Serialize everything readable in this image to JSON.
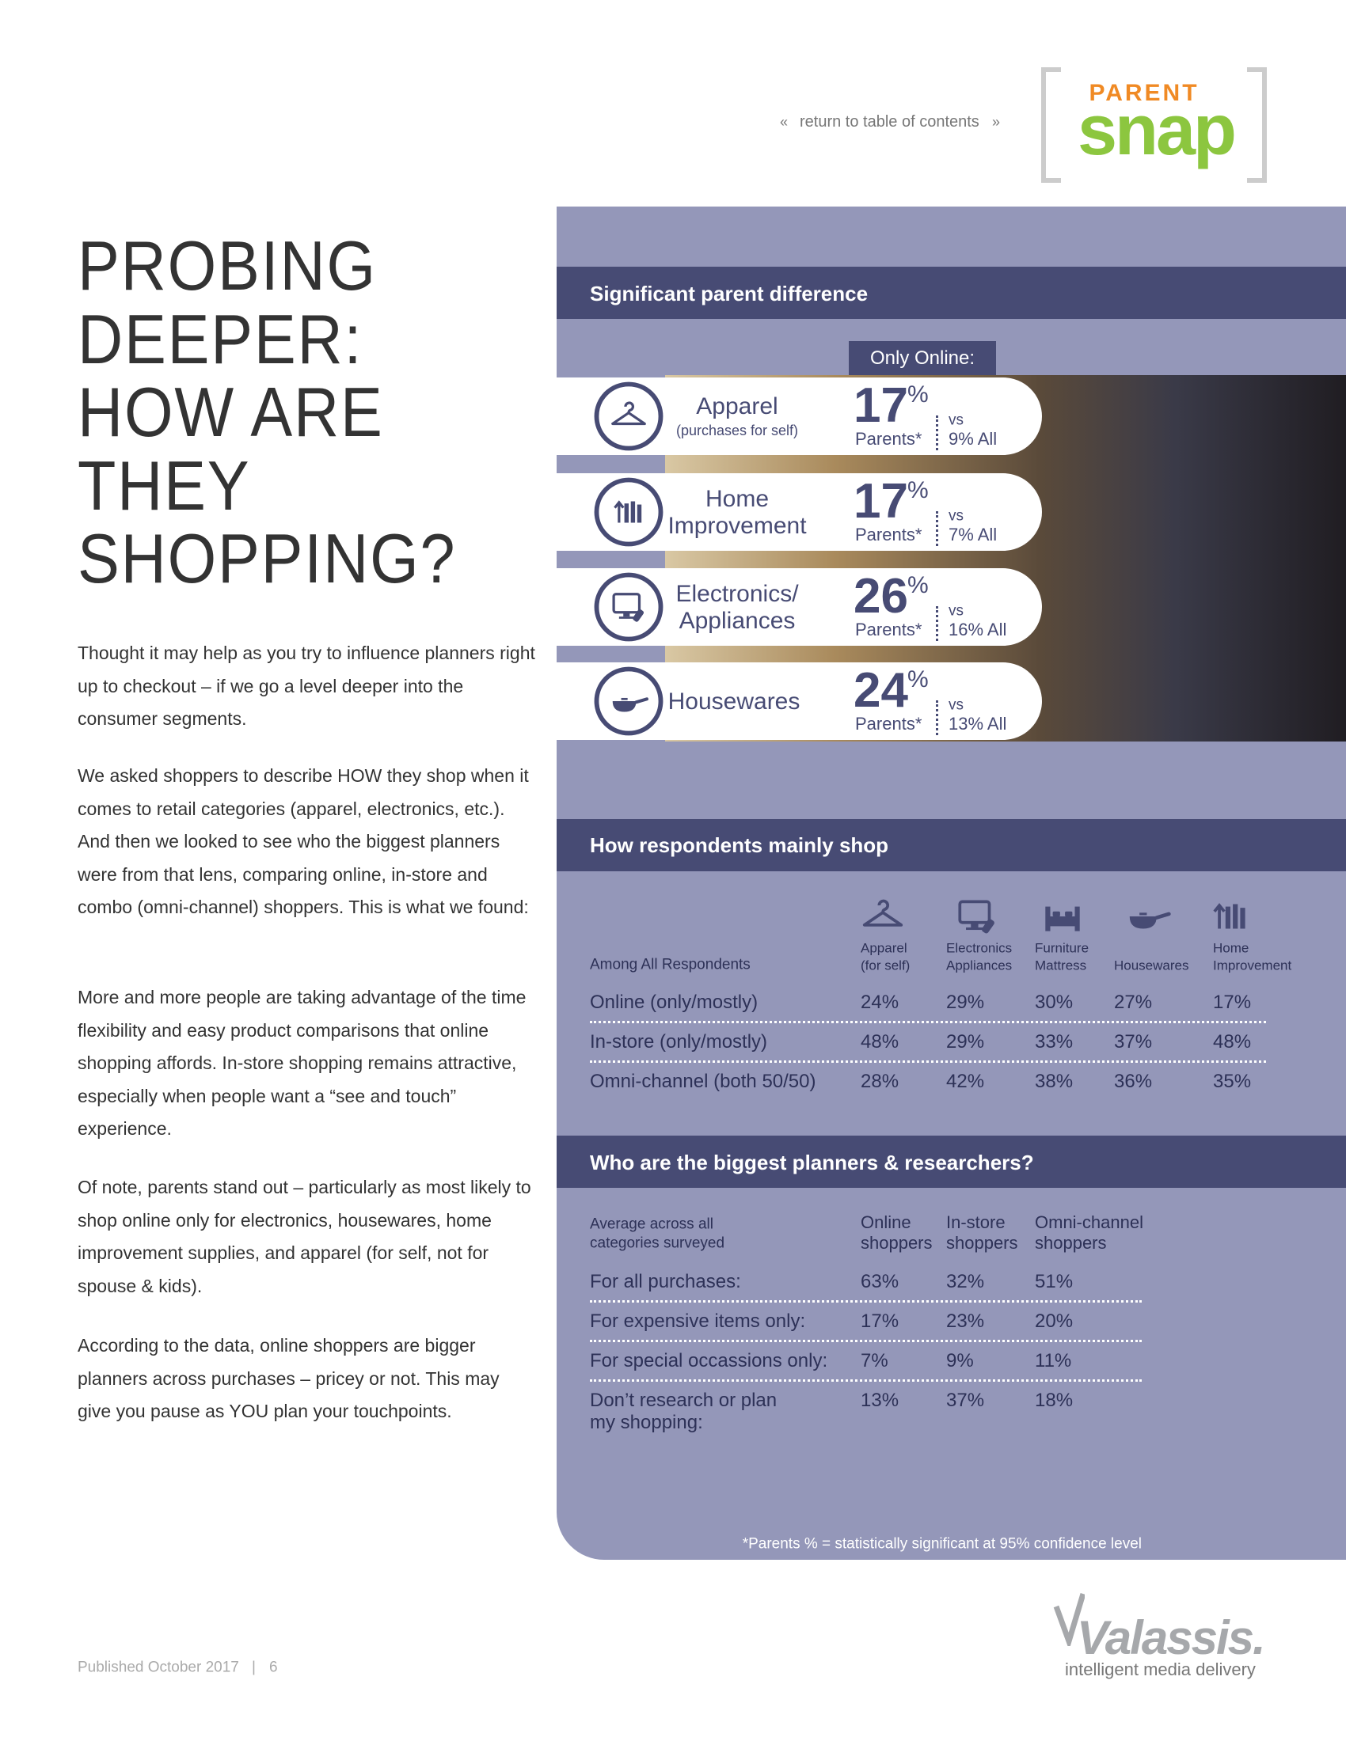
{
  "nav": {
    "prev": "«",
    "link": "return to table of contents",
    "next": "»"
  },
  "logo": {
    "top": "PARENT",
    "main": "snap"
  },
  "title": [
    "PROBING",
    "DEEPER:",
    "HOW ARE",
    "THEY",
    "SHOPPING?"
  ],
  "paragraphs": [
    "Thought it may help as you try to influence planners right up to checkout – if we go a level deeper into the consumer segments.",
    "We asked shoppers to describe HOW they shop when it comes to retail categories (apparel, electronics, etc.). And then we looked to see who the biggest planners were from that lens, comparing online, in-store and combo (omni-channel) shoppers. This is what we found:",
    "More and more people are taking advantage of the time flexibility and easy product comparisons that online shopping affords. In-store shopping remains attractive, especially when people want a “see and touch” experience.",
    "Of note, parents stand out – particularly as most likely to shop online only for electronics, housewares, home improvement supplies, and apparel (for self, not for spouse & kids).",
    "According to the data, online shoppers are bigger planners across purchases – pricey or not. This may give you pause as YOU plan your touchpoints."
  ],
  "significant": {
    "heading": "Significant parent difference",
    "tab": "Only Online:",
    "rows": [
      {
        "label": [
          "Apparel"
        ],
        "sublabel": "(purchases for self)",
        "value": "17",
        "unit": "%",
        "group": "Parents*",
        "vs": "vs",
        "comparison": "9% All"
      },
      {
        "label": [
          "Home",
          "Improvement"
        ],
        "value": "17",
        "unit": "%",
        "group": "Parents*",
        "vs": "vs",
        "comparison": "7% All"
      },
      {
        "label": [
          "Electronics/",
          "Appliances"
        ],
        "value": "26",
        "unit": "%",
        "group": "Parents*",
        "vs": "vs",
        "comparison": "16% All"
      },
      {
        "label": [
          "Housewares"
        ],
        "value": "24",
        "unit": "%",
        "group": "Parents*",
        "vs": "vs",
        "comparison": "13% All"
      }
    ]
  },
  "mainly_shop": {
    "heading": "How respondents mainly shop",
    "corner": "Among All Respondents",
    "columns": [
      [
        "Apparel",
        "(for self)"
      ],
      [
        "Electronics",
        "Appliances"
      ],
      [
        "Furniture",
        "Mattress"
      ],
      [
        "Housewares"
      ],
      [
        "Home",
        "Improvement"
      ]
    ],
    "rows": [
      {
        "label": "Online (only/mostly)",
        "values": [
          "24%",
          "29%",
          "30%",
          "27%",
          "17%"
        ]
      },
      {
        "label": "In-store (only/mostly)",
        "values": [
          "48%",
          "29%",
          "33%",
          "37%",
          "48%"
        ]
      },
      {
        "label": "Omni-channel (both 50/50)",
        "values": [
          "28%",
          "42%",
          "38%",
          "36%",
          "35%"
        ]
      }
    ]
  },
  "planners": {
    "heading": "Who are the biggest planners & researchers?",
    "corner": [
      "Average across all",
      "categories surveyed"
    ],
    "columns": [
      [
        "Online",
        "shoppers"
      ],
      [
        "In-store",
        "shoppers"
      ],
      [
        "Omni-channel",
        "shoppers"
      ]
    ],
    "rows": [
      {
        "label": [
          "For all purchases:"
        ],
        "values": [
          "63%",
          "32%",
          "51%"
        ]
      },
      {
        "label": [
          "For expensive items only:"
        ],
        "values": [
          "17%",
          "23%",
          "20%"
        ]
      },
      {
        "label": [
          "For special occassions only:"
        ],
        "values": [
          "7%",
          "9%",
          "11%"
        ]
      },
      {
        "label": [
          "Don’t research or plan",
          "my shopping:"
        ],
        "values": [
          "13%",
          "37%",
          "18%"
        ]
      }
    ]
  },
  "footnote": "*Parents % = statistically significant at 95% confidence level",
  "footer": {
    "published": "Published October 2017",
    "separator": "|",
    "page": "6"
  },
  "brand": {
    "name": "Valassis.",
    "tagline": "intelligent media delivery"
  }
}
